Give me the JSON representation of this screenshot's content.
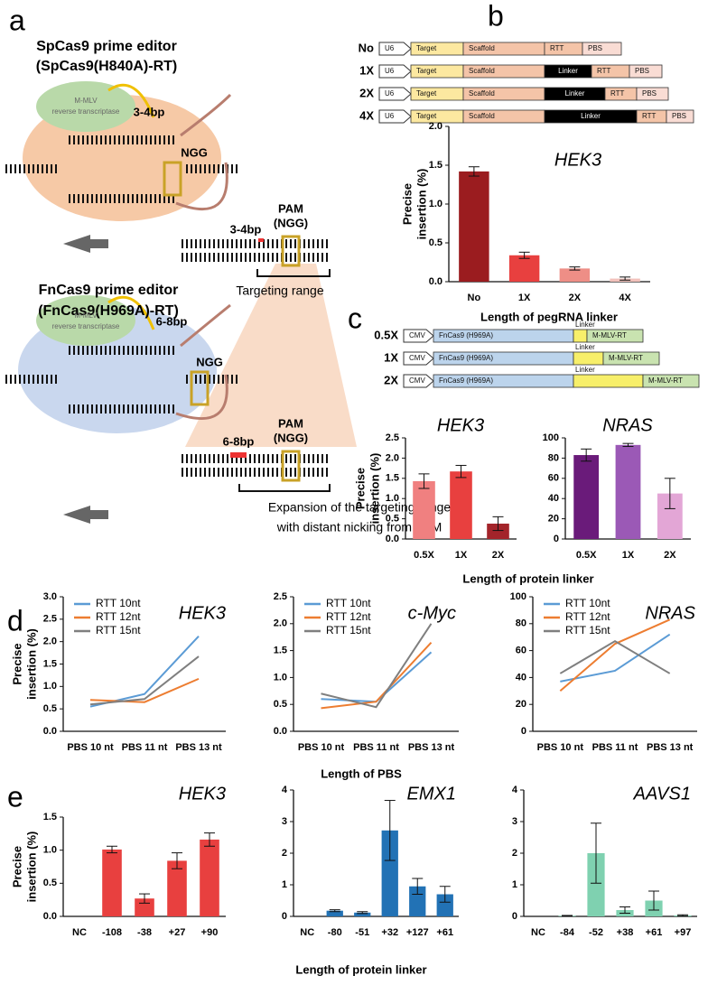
{
  "panels": [
    "a",
    "b",
    "c",
    "d",
    "e"
  ],
  "diagram_a": {
    "sp_title": "SpCas9 prime editor",
    "sp_sub": "(SpCas9(H840A)-RT)",
    "rt_label_1": [
      "M-MLV",
      "reverse transcriptase"
    ],
    "rt_label_2": [
      "M-MLV",
      "reverse transcriptase"
    ],
    "sp_nick": "3-4bp",
    "sp_ngg": "NGG",
    "sp_nick_2": "3-4bp",
    "sp_pam": [
      "PAM",
      "(NGG)"
    ],
    "targeting": "Targeting range",
    "fn_title": "FnCas9 prime editor",
    "fn_sub": "(FnCas9(H969A)-RT)",
    "fn_nick": "6-8bp",
    "fn_ngg": "NGG",
    "fn_nick_2": "6-8bp",
    "fn_pam": [
      "PAM",
      "(NGG)"
    ],
    "expansion": [
      "Expansion of the targeting range",
      "with distant nicking from PAM"
    ]
  },
  "constructs_b": [
    {
      "label": "No",
      "parts": [
        "U6",
        "Target",
        "Scaffold",
        "RTT",
        "PBS"
      ]
    },
    {
      "label": "1X",
      "parts": [
        "U6",
        "Target",
        "Scaffold",
        "Linker",
        "RTT",
        "PBS"
      ]
    },
    {
      "label": "2X",
      "parts": [
        "U6",
        "Target",
        "Scaffold",
        "Linker",
        "RTT",
        "PBS"
      ]
    },
    {
      "label": "4X",
      "parts": [
        "U6",
        "Target",
        "Scaffold",
        "Linker",
        "RTT",
        "PBS"
      ]
    }
  ],
  "constructs_c": [
    {
      "label": "0.5X",
      "parts": [
        "CMV",
        "FnCas9 (H969A)",
        "Linker",
        "M-MLV-RT"
      ]
    },
    {
      "label": "1X",
      "parts": [
        "CMV",
        "FnCas9 (H969A)",
        "Linker",
        "M-MLV-RT"
      ]
    },
    {
      "label": "2X",
      "parts": [
        "CMV",
        "FnCas9 (H969A)",
        "Linker",
        "M-MLV-RT"
      ]
    }
  ],
  "chart_data": [
    {
      "type": "bar",
      "title": "HEK3",
      "ylabel": [
        "Precise",
        "insertion (%)"
      ],
      "xlabel": "Length of pegRNA linker",
      "categories": [
        "No",
        "1X",
        "2X",
        "4X"
      ],
      "values": [
        1.42,
        0.34,
        0.17,
        0.04
      ],
      "errors": [
        0.06,
        0.04,
        0.02,
        0.02
      ],
      "colors": [
        "#9b1c1f",
        "#e8403f",
        "#ee8e86",
        "#f2c1bb"
      ],
      "ylim": [
        0,
        2
      ],
      "yticks": [
        {
          "value": 0,
          "label": "0.0"
        },
        0.5,
        {
          "value": 1,
          "label": "1.0"
        },
        1.5,
        {
          "value": 2,
          "label": "2.0"
        }
      ]
    },
    {
      "type": "bar",
      "title": "HEK3",
      "ylabel": [
        "Precise",
        "insertion (%)"
      ],
      "xlabel": "Length of protein linker",
      "categories": [
        "0.5X",
        "1X",
        "2X"
      ],
      "values": [
        1.43,
        1.67,
        0.38
      ],
      "errors": [
        0.18,
        0.15,
        0.17
      ],
      "colors": [
        "#f08080",
        "#e8403f",
        "#a3242a"
      ],
      "ylim": [
        0,
        2.5
      ],
      "yticks": [
        {
          "value": 0,
          "label": "0.0"
        },
        0.5,
        {
          "value": 1,
          "label": "1.0"
        },
        1.5,
        {
          "value": 2,
          "label": "2.0"
        },
        2.5
      ]
    },
    {
      "type": "bar",
      "title": "NRAS",
      "categories": [
        "0.5X",
        "1X",
        "2X"
      ],
      "values": [
        83,
        93,
        45
      ],
      "errors": [
        6,
        1.5,
        15
      ],
      "colors": [
        "#6a1b7a",
        "#9b59b6",
        "#e3a6d6"
      ],
      "ylim": [
        0,
        100
      ],
      "yticks": [
        0,
        20,
        40,
        60,
        80,
        100
      ]
    },
    {
      "type": "line",
      "title": "HEK3",
      "ylabel": [
        "Precise",
        "insertion (%)"
      ],
      "legend": "upper left",
      "categories": [
        "PBS 10 nt",
        "PBS 11 nt",
        "PBS 13 nt"
      ],
      "series": [
        {
          "name": "RTT 10nt",
          "color": "#5b9bd5",
          "values": [
            0.55,
            0.83,
            2.12
          ]
        },
        {
          "name": "RTT 12nt",
          "color": "#ed7d31",
          "values": [
            0.7,
            0.65,
            1.17
          ]
        },
        {
          "name": "RTT 15nt",
          "color": "#7f7f7f",
          "values": [
            0.6,
            0.72,
            1.67
          ]
        }
      ],
      "ylim": [
        0,
        3
      ],
      "yticks": [
        {
          "value": 0,
          "label": "0.0"
        },
        0.5,
        {
          "value": 1,
          "label": "1.0"
        },
        1.5,
        {
          "value": 2,
          "label": "2.0"
        },
        2.5,
        {
          "value": 3,
          "label": "3.0"
        }
      ]
    },
    {
      "type": "line",
      "title": "c-Myc",
      "xlabel": "Length of PBS",
      "legend": "upper left",
      "categories": [
        "PBS 10 nt",
        "PBS 11 nt",
        "PBS 13 nt"
      ],
      "series": [
        {
          "name": "RTT 10nt",
          "color": "#5b9bd5",
          "values": [
            0.6,
            0.55,
            1.47
          ]
        },
        {
          "name": "RTT 12nt",
          "color": "#ed7d31",
          "values": [
            0.43,
            0.55,
            1.65
          ]
        },
        {
          "name": "RTT 15nt",
          "color": "#7f7f7f",
          "values": [
            0.7,
            0.45,
            2.0
          ]
        }
      ],
      "ylim": [
        0,
        2.5
      ],
      "yticks": [
        {
          "value": 0,
          "label": "0.0"
        },
        0.5,
        {
          "value": 1,
          "label": "1.0"
        },
        1.5,
        {
          "value": 2,
          "label": "2.0"
        },
        2.5
      ]
    },
    {
      "type": "line",
      "title": "NRAS",
      "legend": "upper left",
      "categories": [
        "PBS 10 nt",
        "PBS 11 nt",
        "PBS 13 nt"
      ],
      "series": [
        {
          "name": "RTT 10nt",
          "color": "#5b9bd5",
          "values": [
            37,
            45,
            72
          ]
        },
        {
          "name": "RTT 12nt",
          "color": "#ed7d31",
          "values": [
            30,
            65,
            83
          ]
        },
        {
          "name": "RTT 15nt",
          "color": "#7f7f7f",
          "values": [
            43,
            67,
            43
          ]
        }
      ],
      "ylim": [
        0,
        100
      ],
      "yticks": [
        0,
        20,
        40,
        60,
        80,
        100
      ]
    },
    {
      "type": "bar",
      "title": "HEK3",
      "ylabel": [
        "Precise",
        "insertion (%)"
      ],
      "categories": [
        "NC",
        "-108",
        "-38",
        "+27",
        "+90"
      ],
      "values": [
        0,
        1.01,
        0.27,
        0.84,
        1.16
      ],
      "errors": [
        0,
        0.05,
        0.07,
        0.12,
        0.1
      ],
      "color": "#e8403f",
      "ylim": [
        0,
        1.5
      ],
      "yticks": [
        {
          "value": 0,
          "label": "0.0"
        },
        0.5,
        {
          "value": 1,
          "label": "1.0"
        },
        1.5
      ]
    },
    {
      "type": "bar",
      "title": "EMX1",
      "xlabel": "Length of protein linker",
      "categories": [
        "NC",
        "-80",
        "-51",
        "+32",
        "+127",
        "+61"
      ],
      "values": [
        0,
        0.18,
        0.12,
        2.72,
        0.95,
        0.7
      ],
      "errors": [
        0,
        0.03,
        0.03,
        0.95,
        0.25,
        0.25
      ],
      "color": "#2272b5",
      "ylim": [
        0,
        4
      ],
      "yticks": [
        0,
        1,
        2,
        3,
        4
      ]
    },
    {
      "type": "bar",
      "title": "AAVS1",
      "categories": [
        "NC",
        "-84",
        "-52",
        "+38",
        "+61",
        "+97"
      ],
      "values": [
        0,
        0.02,
        2.0,
        0.2,
        0.5,
        0.03
      ],
      "errors": [
        0,
        0.01,
        0.95,
        0.1,
        0.3,
        0.02
      ],
      "color": "#7fd1b0",
      "ylim": [
        0,
        4
      ],
      "yticks": [
        0,
        1,
        2,
        3,
        4
      ]
    }
  ]
}
